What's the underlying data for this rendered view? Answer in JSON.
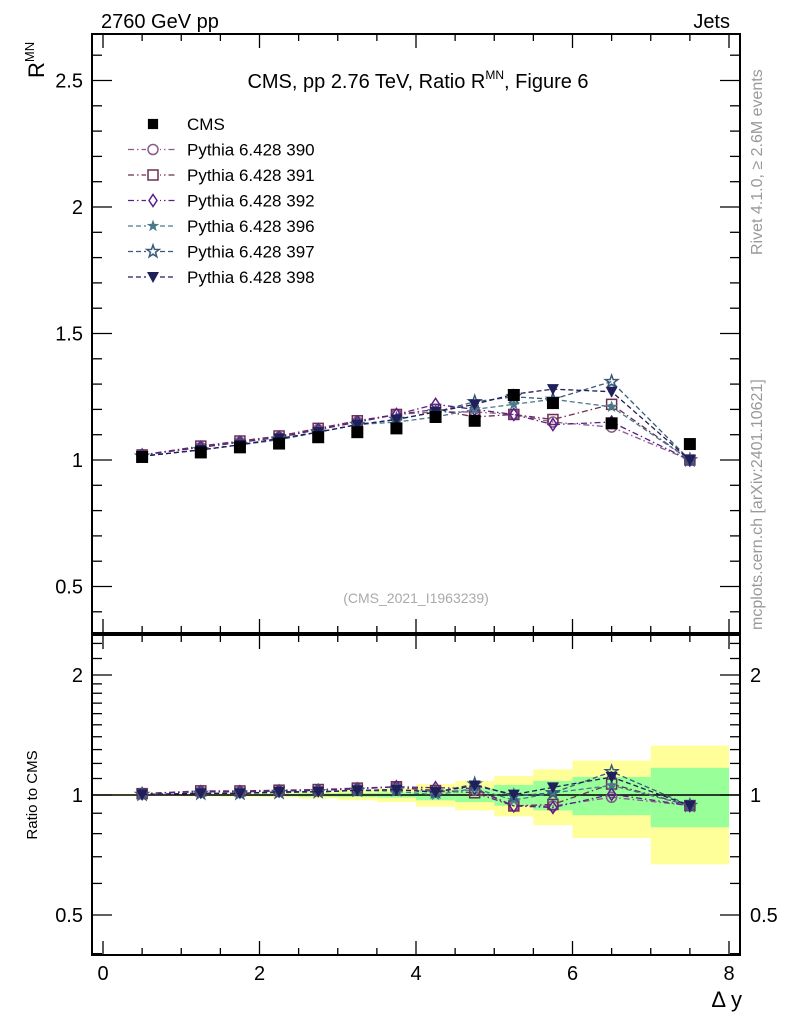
{
  "chart_data": {
    "type": "scatter",
    "title": "CMS, pp 2.76 TeV, Ratio R",
    "title_sup": "MN",
    "title_suffix": ", Figure 6",
    "top_left_label": "2760 GeV pp",
    "top_right_label": "Jets",
    "side_label_rivet": "Rivet 4.1.0, ≥ 2.6M events",
    "side_label_mcplots": "mcplots.cern.ch [arXiv:2401.10621]",
    "analysis_id": "(CMS_2021_I1963239)",
    "ylabel": "R",
    "ylabel_sup": "MN",
    "xlabel": "Δ y",
    "ratio_ylabel": "Ratio to CMS",
    "xlim": [
      -0.15,
      8.15
    ],
    "ylim": [
      0.316,
      2.68
    ],
    "ratio_ylim": [
      0.397,
      2.52
    ],
    "x_ticks": [
      "0",
      "2",
      "4",
      "6",
      "8"
    ],
    "y_ticks": [
      "0.5",
      "1",
      "1.5",
      "2",
      "2.5"
    ],
    "ratio_y_ticks": [
      "0.5",
      "1",
      "2"
    ],
    "x": [
      0.5,
      1.25,
      1.75,
      2.25,
      2.75,
      3.25,
      3.75,
      4.25,
      4.75,
      5.25,
      5.75,
      6.5,
      7.5
    ],
    "bin_edges": [
      0,
      1,
      1.5,
      2,
      2.5,
      3,
      3.5,
      4,
      4.5,
      5,
      5.5,
      6,
      7,
      8
    ],
    "data": {
      "name": "CMS",
      "values": [
        1.012,
        1.03,
        1.05,
        1.065,
        1.09,
        1.11,
        1.125,
        1.17,
        1.155,
        1.257,
        1.225,
        1.145,
        1.063
      ],
      "stat_rel": [
        0.003,
        0.005,
        0.005,
        0.007,
        0.01,
        0.012,
        0.015,
        0.03,
        0.04,
        0.06,
        0.085,
        0.11,
        0.17
      ],
      "total_rel": [
        0.005,
        0.008,
        0.01,
        0.012,
        0.02,
        0.03,
        0.04,
        0.065,
        0.085,
        0.116,
        0.16,
        0.22,
        0.33
      ]
    },
    "series": [
      {
        "name": "Pythia 6.428 390",
        "marker": "circle-open",
        "dash": "dashdot",
        "color": "#8a5a8a",
        "values": [
          1.02,
          1.05,
          1.07,
          1.09,
          1.12,
          1.15,
          1.18,
          1.19,
          1.19,
          1.18,
          1.15,
          1.13,
          1.0
        ]
      },
      {
        "name": "Pythia 6.428 391",
        "marker": "square-open",
        "dash": "dashdot",
        "color": "#6b2f52",
        "values": [
          1.02,
          1.055,
          1.075,
          1.095,
          1.125,
          1.155,
          1.18,
          1.2,
          1.17,
          1.18,
          1.16,
          1.22,
          1.0
        ]
      },
      {
        "name": "Pythia 6.428 392",
        "marker": "diamond-open",
        "dash": "dashdot",
        "color": "#5a1f8a",
        "values": [
          1.02,
          1.05,
          1.07,
          1.09,
          1.12,
          1.15,
          1.18,
          1.22,
          1.2,
          1.18,
          1.14,
          1.15,
          1.0
        ]
      },
      {
        "name": "Pythia 6.428 396",
        "marker": "star-filled",
        "dash": "dashed",
        "color": "#4a7a8a",
        "values": [
          1.015,
          1.04,
          1.06,
          1.085,
          1.11,
          1.14,
          1.15,
          1.17,
          1.2,
          1.22,
          1.24,
          1.21,
          1.0
        ]
      },
      {
        "name": "Pythia 6.428 397",
        "marker": "star-open",
        "dash": "dashed",
        "color": "#3a5a7a",
        "values": [
          1.015,
          1.04,
          1.06,
          1.08,
          1.11,
          1.14,
          1.16,
          1.19,
          1.23,
          1.25,
          1.24,
          1.31,
          1.0
        ]
      },
      {
        "name": "Pythia 6.428 398",
        "marker": "triangle-down-filled",
        "dash": "dashed",
        "color": "#1f1f5a",
        "values": [
          1.015,
          1.04,
          1.06,
          1.085,
          1.11,
          1.14,
          1.16,
          1.19,
          1.22,
          1.26,
          1.28,
          1.27,
          1.0
        ]
      }
    ],
    "band_colors": {
      "stat": "#99ff99",
      "total": "#ffff99"
    },
    "legend_placement": "top-left"
  }
}
